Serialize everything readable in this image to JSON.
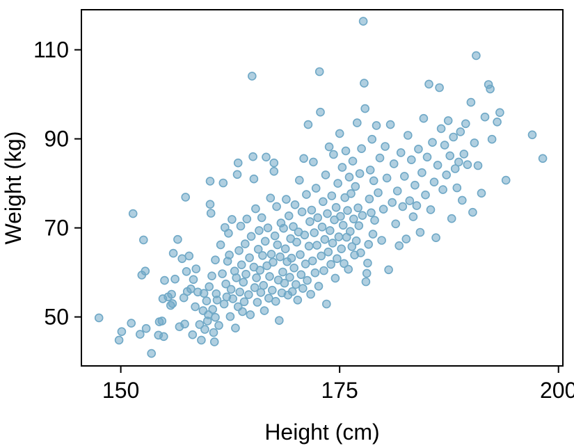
{
  "chart_data": {
    "type": "scatter",
    "title": "",
    "xlabel": "Height (cm)",
    "ylabel": "Weight (kg)",
    "xlim": [
      145.5,
      200.5
    ],
    "ylim": [
      39,
      119
    ],
    "xticks": [
      150,
      175,
      200
    ],
    "yticks": [
      50,
      70,
      90,
      110
    ],
    "grid": false,
    "legend": "none",
    "marker_color": "#6fa8c6",
    "points": [
      [
        147.5,
        49.8
      ],
      [
        149.8,
        44.8
      ],
      [
        150.1,
        46.7
      ],
      [
        151.2,
        48.6
      ],
      [
        151.4,
        73.2
      ],
      [
        152.2,
        46.1
      ],
      [
        152.4,
        59.4
      ],
      [
        152.6,
        67.3
      ],
      [
        152.8,
        60.3
      ],
      [
        152.9,
        47.4
      ],
      [
        153.5,
        41.8
      ],
      [
        154.3,
        45.9
      ],
      [
        154.4,
        48.9
      ],
      [
        154.7,
        49.1
      ],
      [
        154.8,
        54.1
      ],
      [
        154.9,
        45.6
      ],
      [
        155.0,
        58.2
      ],
      [
        155.4,
        54.5
      ],
      [
        155.7,
        52.6
      ],
      [
        155.8,
        55.1
      ],
      [
        155.9,
        53.0
      ],
      [
        156.0,
        64.3
      ],
      [
        156.2,
        58.5
      ],
      [
        156.5,
        67.4
      ],
      [
        156.7,
        47.8
      ],
      [
        157.0,
        63.1
      ],
      [
        157.2,
        54.3
      ],
      [
        157.3,
        48.4
      ],
      [
        157.4,
        76.9
      ],
      [
        157.5,
        60.2
      ],
      [
        157.6,
        55.7
      ],
      [
        157.8,
        63.7
      ],
      [
        158.0,
        56.3
      ],
      [
        158.2,
        46.0
      ],
      [
        158.3,
        58.4
      ],
      [
        158.5,
        52.3
      ],
      [
        158.6,
        60.8
      ],
      [
        158.8,
        55.6
      ],
      [
        159.0,
        48.3
      ],
      [
        159.2,
        44.8
      ],
      [
        159.4,
        51.4
      ],
      [
        159.5,
        55.3
      ],
      [
        159.6,
        47.2
      ],
      [
        159.8,
        53.6
      ],
      [
        159.9,
        49.1
      ],
      [
        160.0,
        50.5
      ],
      [
        160.1,
        56.8
      ],
      [
        160.2,
        80.5
      ],
      [
        160.2,
        75.3
      ],
      [
        160.3,
        73.3
      ],
      [
        160.4,
        59.2
      ],
      [
        160.5,
        51.7
      ],
      [
        160.6,
        46.5
      ],
      [
        160.7,
        44.4
      ],
      [
        160.8,
        49.9
      ],
      [
        160.8,
        62.8
      ],
      [
        160.9,
        55.2
      ],
      [
        161.0,
        53.8
      ],
      [
        161.2,
        48.1
      ],
      [
        161.4,
        66.2
      ],
      [
        161.6,
        59.7
      ],
      [
        161.7,
        80.1
      ],
      [
        161.8,
        52.9
      ],
      [
        161.9,
        70.1
      ],
      [
        162.0,
        57.4
      ],
      [
        162.1,
        54.5
      ],
      [
        162.2,
        62.5
      ],
      [
        162.3,
        68.8
      ],
      [
        162.4,
        63.9
      ],
      [
        162.5,
        50.1
      ],
      [
        162.6,
        56.2
      ],
      [
        162.7,
        71.9
      ],
      [
        162.8,
        54.1
      ],
      [
        163.0,
        60.3
      ],
      [
        163.1,
        47.5
      ],
      [
        163.2,
        58.8
      ],
      [
        163.3,
        82.0
      ],
      [
        163.4,
        84.6
      ],
      [
        163.4,
        52.3
      ],
      [
        163.5,
        64.9
      ],
      [
        163.6,
        55.6
      ],
      [
        163.7,
        70.4
      ],
      [
        163.8,
        61.7
      ],
      [
        163.9,
        51.2
      ],
      [
        164.0,
        57.8
      ],
      [
        164.1,
        53.4
      ],
      [
        164.2,
        66.4
      ],
      [
        164.3,
        59.6
      ],
      [
        164.4,
        72.0
      ],
      [
        164.6,
        55.0
      ],
      [
        164.7,
        63.3
      ],
      [
        164.8,
        50.5
      ],
      [
        164.9,
        68.1
      ],
      [
        165.0,
        104.1
      ],
      [
        165.1,
        86.0
      ],
      [
        165.2,
        81.0
      ],
      [
        165.2,
        61.2
      ],
      [
        165.3,
        56.6
      ],
      [
        165.4,
        74.3
      ],
      [
        165.5,
        58.8
      ],
      [
        165.6,
        53.3
      ],
      [
        165.7,
        65.2
      ],
      [
        165.8,
        69.4
      ],
      [
        165.9,
        60.5
      ],
      [
        166.0,
        55.5
      ],
      [
        166.1,
        72.3
      ],
      [
        166.2,
        63.8
      ],
      [
        166.3,
        57.1
      ],
      [
        166.4,
        51.4
      ],
      [
        166.5,
        67.0
      ],
      [
        166.6,
        85.9
      ],
      [
        166.7,
        61.5
      ],
      [
        166.8,
        70.0
      ],
      [
        166.9,
        54.2
      ],
      [
        167.0,
        59.1
      ],
      [
        167.1,
        76.7
      ],
      [
        167.2,
        64.1
      ],
      [
        167.3,
        56.0
      ],
      [
        167.4,
        62.3
      ],
      [
        167.5,
        84.6
      ],
      [
        167.5,
        82.7
      ],
      [
        167.6,
        68.2
      ],
      [
        167.7,
        53.5
      ],
      [
        167.8,
        74.8
      ],
      [
        167.9,
        66.2
      ],
      [
        168.0,
        58.3
      ],
      [
        168.1,
        49.2
      ],
      [
        168.2,
        63.5
      ],
      [
        168.3,
        71.1
      ],
      [
        168.4,
        55.4
      ],
      [
        168.5,
        60.1
      ],
      [
        168.6,
        69.9
      ],
      [
        168.7,
        57.6
      ],
      [
        168.8,
        65.3
      ],
      [
        168.9,
        76.4
      ],
      [
        169.0,
        62.4
      ],
      [
        169.1,
        54.9
      ],
      [
        169.2,
        72.7
      ],
      [
        169.3,
        58.9
      ],
      [
        169.4,
        67.6
      ],
      [
        169.5,
        63.2
      ],
      [
        169.6,
        55.7
      ],
      [
        169.7,
        70.3
      ],
      [
        169.8,
        61.0
      ],
      [
        169.9,
        75.2
      ],
      [
        170.0,
        57.3
      ],
      [
        170.1,
        66.8
      ],
      [
        170.2,
        53.8
      ],
      [
        170.3,
        69.1
      ],
      [
        170.4,
        80.7
      ],
      [
        170.5,
        64.0
      ],
      [
        170.6,
        59.5
      ],
      [
        170.7,
        73.6
      ],
      [
        170.8,
        56.4
      ],
      [
        170.9,
        85.6
      ],
      [
        171.0,
        68.4
      ],
      [
        171.1,
        61.9
      ],
      [
        171.2,
        77.5
      ],
      [
        171.3,
        58.2
      ],
      [
        171.4,
        93.2
      ],
      [
        171.5,
        65.9
      ],
      [
        171.6,
        71.4
      ],
      [
        171.7,
        55.1
      ],
      [
        171.8,
        74.0
      ],
      [
        171.9,
        62.6
      ],
      [
        172.0,
        84.8
      ],
      [
        172.1,
        68.9
      ],
      [
        172.2,
        59.9
      ],
      [
        172.3,
        78.9
      ],
      [
        172.4,
        66.1
      ],
      [
        172.5,
        72.3
      ],
      [
        172.6,
        56.9
      ],
      [
        172.7,
        105.1
      ],
      [
        172.8,
        96.0
      ],
      [
        172.9,
        63.7
      ],
      [
        173.0,
        70.2
      ],
      [
        173.1,
        75.9
      ],
      [
        173.2,
        60.4
      ],
      [
        173.3,
        67.4
      ],
      [
        173.4,
        81.9
      ],
      [
        173.5,
        52.9
      ],
      [
        173.6,
        73.2
      ],
      [
        173.7,
        64.6
      ],
      [
        173.8,
        88.2
      ],
      [
        173.9,
        69.4
      ],
      [
        174.0,
        61.8
      ],
      [
        174.1,
        77.2
      ],
      [
        174.2,
        66.6
      ],
      [
        174.3,
        86.5
      ],
      [
        174.4,
        71.8
      ],
      [
        174.5,
        58.7
      ],
      [
        174.6,
        74.6
      ],
      [
        174.7,
        63.1
      ],
      [
        174.8,
        80.0
      ],
      [
        174.9,
        68.0
      ],
      [
        175.0,
        91.2
      ],
      [
        175.1,
        72.6
      ],
      [
        175.2,
        65.3
      ],
      [
        175.3,
        83.6
      ],
      [
        175.4,
        70.6
      ],
      [
        175.5,
        62.0
      ],
      [
        175.6,
        76.8
      ],
      [
        175.7,
        87.3
      ],
      [
        175.8,
        67.9
      ],
      [
        175.9,
        73.9
      ],
      [
        176.0,
        60.7
      ],
      [
        176.1,
        81.4
      ],
      [
        176.2,
        69.2
      ],
      [
        176.3,
        77.7
      ],
      [
        176.4,
        65.8
      ],
      [
        176.5,
        85.0
      ],
      [
        176.6,
        72.0
      ],
      [
        176.7,
        63.9
      ],
      [
        176.8,
        79.3
      ],
      [
        176.9,
        67.1
      ],
      [
        177.0,
        93.6
      ],
      [
        177.1,
        74.5
      ],
      [
        177.2,
        70.5
      ],
      [
        177.3,
        82.2
      ],
      [
        177.4,
        64.4
      ],
      [
        177.5,
        87.8
      ],
      [
        177.6,
        72.8
      ],
      [
        177.7,
        116.4
      ],
      [
        177.8,
        102.5
      ],
      [
        177.9,
        96.8
      ],
      [
        178.0,
        57.9
      ],
      [
        178.1,
        59.8
      ],
      [
        178.2,
        62.1
      ],
      [
        178.3,
        66.3
      ],
      [
        178.4,
        76.5
      ],
      [
        178.5,
        83.0
      ],
      [
        178.6,
        73.4
      ],
      [
        178.7,
        89.9
      ],
      [
        178.8,
        68.6
      ],
      [
        178.9,
        80.6
      ],
      [
        179.0,
        71.7
      ],
      [
        179.2,
        93.0
      ],
      [
        179.4,
        77.9
      ],
      [
        179.6,
        85.7
      ],
      [
        179.8,
        67.2
      ],
      [
        180.0,
        74.2
      ],
      [
        180.2,
        88.3
      ],
      [
        180.4,
        81.2
      ],
      [
        180.6,
        60.6
      ],
      [
        180.8,
        93.2
      ],
      [
        181.0,
        75.7
      ],
      [
        181.2,
        84.4
      ],
      [
        181.4,
        70.9
      ],
      [
        181.6,
        78.3
      ],
      [
        181.8,
        66.0
      ],
      [
        182.0,
        86.9
      ],
      [
        182.2,
        74.8
      ],
      [
        182.4,
        81.6
      ],
      [
        182.6,
        67.5
      ],
      [
        182.8,
        90.8
      ],
      [
        183.0,
        76.1
      ],
      [
        183.2,
        85.3
      ],
      [
        183.4,
        72.5
      ],
      [
        183.6,
        79.6
      ],
      [
        183.8,
        75.0
      ],
      [
        184.0,
        87.7
      ],
      [
        184.2,
        69.0
      ],
      [
        184.4,
        82.4
      ],
      [
        184.6,
        94.6
      ],
      [
        184.8,
        77.4
      ],
      [
        185.0,
        85.9
      ],
      [
        185.2,
        102.3
      ],
      [
        185.4,
        74.1
      ],
      [
        185.6,
        89.2
      ],
      [
        185.8,
        80.3
      ],
      [
        186.0,
        67.8
      ],
      [
        186.2,
        84.1
      ],
      [
        186.4,
        101.5
      ],
      [
        186.6,
        92.3
      ],
      [
        186.8,
        78.6
      ],
      [
        187.0,
        88.6
      ],
      [
        187.2,
        81.9
      ],
      [
        187.4,
        94.1
      ],
      [
        187.6,
        86.2
      ],
      [
        187.8,
        72.1
      ],
      [
        188.0,
        90.4
      ],
      [
        188.2,
        83.3
      ],
      [
        188.4,
        79.0
      ],
      [
        188.6,
        84.8
      ],
      [
        188.8,
        91.6
      ],
      [
        189.0,
        76.2
      ],
      [
        189.2,
        86.6
      ],
      [
        189.4,
        93.4
      ],
      [
        189.6,
        84.2
      ],
      [
        190.0,
        98.2
      ],
      [
        190.2,
        73.5
      ],
      [
        190.4,
        89.1
      ],
      [
        190.6,
        108.7
      ],
      [
        190.8,
        84.0
      ],
      [
        191.2,
        77.8
      ],
      [
        191.6,
        94.9
      ],
      [
        192.0,
        102.2
      ],
      [
        192.2,
        101.2
      ],
      [
        192.4,
        89.9
      ],
      [
        193.0,
        93.8
      ],
      [
        193.3,
        95.9
      ],
      [
        194.0,
        80.7
      ],
      [
        197.0,
        90.9
      ],
      [
        198.2,
        85.6
      ]
    ]
  }
}
